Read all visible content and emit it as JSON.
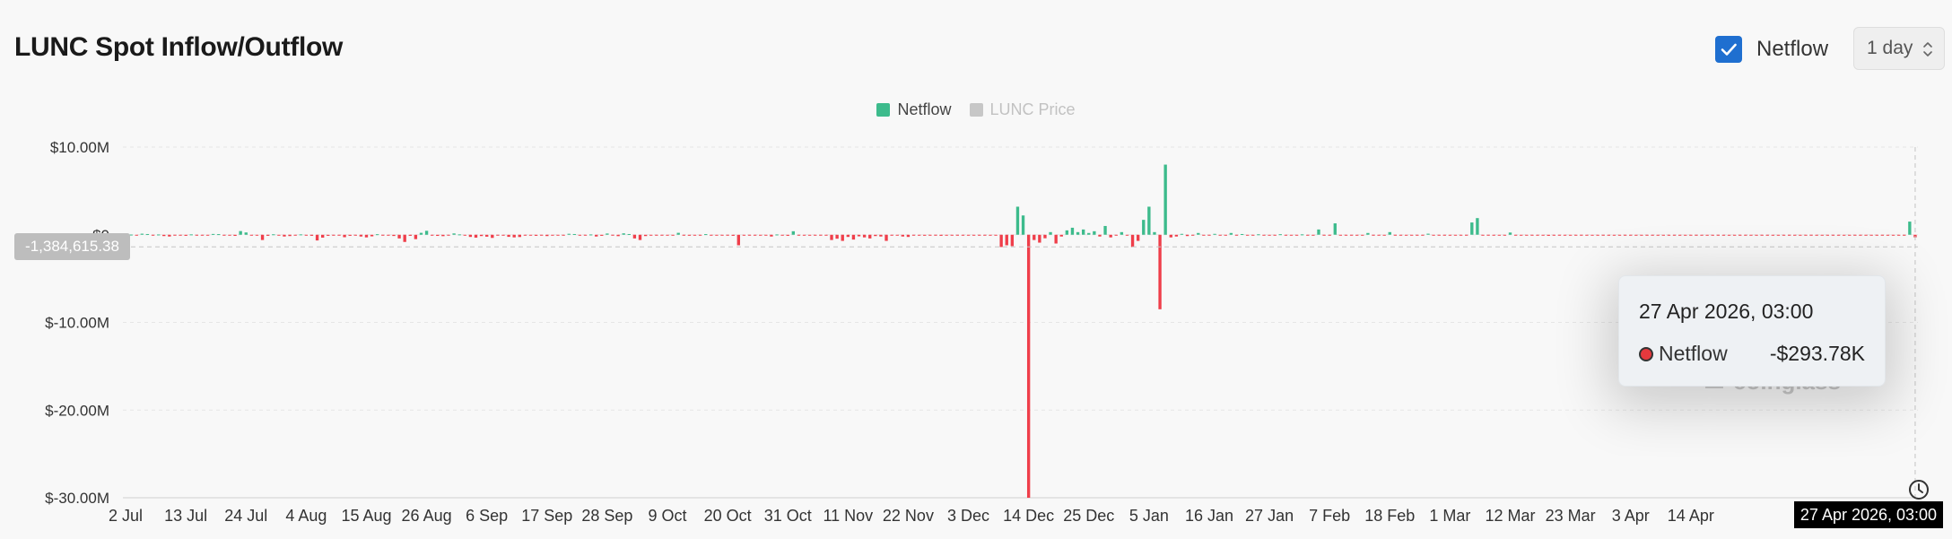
{
  "header": {
    "title": "LUNC Spot Inflow/Outflow",
    "netflow_toggle_label": "Netflow",
    "netflow_checked": true,
    "interval_value": "1 day"
  },
  "legend": [
    {
      "label": "Netflow",
      "color": "#3dbb8c",
      "active": true
    },
    {
      "label": "LUNC Price",
      "color": "#c7c7c7",
      "active": false
    }
  ],
  "tooltip": {
    "date": "27 Apr 2026, 03:00",
    "series": "Netflow",
    "value": "-$293.78K",
    "dot_color": "#e5393d"
  },
  "watermark": "coinglass",
  "crosshair": {
    "y_label": "-1,384,615.38",
    "x_label": "27 Apr 2026, 03:00"
  },
  "colors": {
    "positive": "#3dbb8c",
    "negative": "#ef3e4a"
  },
  "chart_data": {
    "type": "bar",
    "title": "LUNC Spot Inflow/Outflow",
    "ylabel": "",
    "xlabel": "",
    "ylim": [
      -30000000,
      10000000
    ],
    "grid": true,
    "legend_position": "top-center",
    "y_ticks": [
      {
        "value": 10000000,
        "label": "$10.00M"
      },
      {
        "value": 0,
        "label": "$0"
      },
      {
        "value": -10000000,
        "label": "$-10.00M"
      },
      {
        "value": -20000000,
        "label": "$-20.00M"
      },
      {
        "value": -30000000,
        "label": "$-30.00M"
      }
    ],
    "x_ticks": [
      "2 Jul",
      "13 Jul",
      "24 Jul",
      "4 Aug",
      "15 Aug",
      "26 Aug",
      "6 Sep",
      "17 Sep",
      "28 Sep",
      "9 Oct",
      "20 Oct",
      "31 Oct",
      "11 Nov",
      "22 Nov",
      "3 Dec",
      "14 Dec",
      "25 Dec",
      "5 Jan",
      "16 Jan",
      "27 Jan",
      "7 Feb",
      "18 Feb",
      "1 Mar",
      "12 Mar",
      "23 Mar",
      "3 Apr",
      "14 Apr"
    ],
    "x_tick_step_days": 11,
    "series": [
      {
        "name": "Netflow",
        "values": [
          60000,
          20000,
          -40000,
          120000,
          80000,
          -60000,
          30000,
          -150000,
          -200000,
          -100000,
          -80000,
          -120000,
          40000,
          -60000,
          -30000,
          -90000,
          90000,
          70000,
          -40000,
          -20000,
          -130000,
          420000,
          260000,
          -90000,
          -60000,
          -600000,
          -120000,
          50000,
          -80000,
          -200000,
          -150000,
          -90000,
          40000,
          -40000,
          -120000,
          -650000,
          -330000,
          -120000,
          -80000,
          -40000,
          -280000,
          -120000,
          -90000,
          -200000,
          -300000,
          -180000,
          60000,
          -100000,
          -50000,
          -140000,
          -420000,
          -820000,
          -120000,
          -500000,
          220000,
          450000,
          -100000,
          -130000,
          -160000,
          -40000,
          150000,
          40000,
          -60000,
          -250000,
          -330000,
          -150000,
          -220000,
          -360000,
          -90000,
          -40000,
          -240000,
          -300000,
          -260000,
          -80000,
          -60000,
          -120000,
          -100000,
          -150000,
          -90000,
          -30000,
          -40000,
          110000,
          80000,
          -30000,
          -90000,
          30000,
          -200000,
          -120000,
          140000,
          -60000,
          -160000,
          160000,
          80000,
          -420000,
          -600000,
          -150000,
          -80000,
          -40000,
          -30000,
          -100000,
          -60000,
          220000,
          -40000,
          -110000,
          -70000,
          -50000,
          70000,
          -60000,
          -30000,
          -90000,
          -40000,
          -120000,
          -1200000,
          -60000,
          -80000,
          -40000,
          -30000,
          -100000,
          -200000,
          30000,
          -50000,
          -120000,
          400000,
          -60000,
          -40000,
          -80000,
          -30000,
          -70000,
          -100000,
          -600000,
          -450000,
          -700000,
          -250000,
          -550000,
          -180000,
          -300000,
          -420000,
          -150000,
          -200000,
          -700000,
          -60000,
          -50000,
          -200000,
          -250000,
          -40000,
          -80000,
          -110000,
          -60000,
          -30000,
          -120000,
          -100000,
          -90000,
          -50000,
          -60000,
          -40000,
          -80000,
          -30000,
          -70000,
          -100000,
          -60000,
          -1400000,
          -1200000,
          -1300000,
          3200000,
          2200000,
          -30000000,
          -600000,
          -900000,
          -400000,
          300000,
          -1000000,
          -200000,
          500000,
          800000,
          300000,
          600000,
          200000,
          400000,
          -200000,
          1000000,
          -300000,
          -100000,
          300000,
          -100000,
          -1400000,
          -700000,
          1700000,
          3200000,
          300000,
          -8500000,
          8000000,
          -300000,
          -200000,
          100000,
          -150000,
          -80000,
          200000,
          -60000,
          -40000,
          100000,
          -70000,
          -60000,
          200000,
          -50000,
          80000,
          -90000,
          -60000,
          50000,
          -40000,
          -100000,
          -30000,
          60000,
          -80000,
          -50000,
          -70000,
          40000,
          -60000,
          -30000,
          600000,
          -50000,
          -40000,
          1300000,
          -80000,
          -60000,
          -40000,
          -100000,
          -50000,
          200000,
          -60000,
          -30000,
          -80000,
          300000,
          -40000,
          -70000,
          -50000,
          -90000,
          -40000,
          -60000,
          120000,
          -30000,
          -60000,
          -50000,
          -80000,
          -40000,
          -70000,
          -60000,
          1400000,
          1900000,
          -80000,
          -50000,
          -100000,
          -60000,
          -40000,
          250000,
          -70000,
          -50000,
          -90000,
          -60000,
          -40000,
          -80000,
          -120000,
          -30000,
          -60000,
          -50000,
          -40000,
          -90000,
          -60000,
          -50000,
          -70000,
          -40000,
          -80000,
          -60000,
          -100000,
          -50000,
          -60000,
          -70000,
          -40000,
          -80000,
          -50000,
          -60000,
          -70000,
          -50000,
          -90000,
          -40000,
          -60000,
          -80000,
          -30000,
          -100000,
          -50000,
          -60000,
          -40000,
          -70000,
          -50000,
          -60000,
          -80000,
          -40000,
          -60000,
          -50000,
          -70000,
          -60000,
          -40000,
          -80000,
          -50000,
          -60000,
          -70000,
          -40000,
          -90000,
          -50000,
          -60000,
          -80000,
          -40000,
          -60000,
          -50000,
          -70000,
          -60000,
          -40000,
          -80000,
          -50000,
          -60000,
          -30000,
          -60000,
          -50000,
          -70000,
          -40000,
          -80000,
          -60000,
          1500000,
          -293780
        ]
      }
    ]
  }
}
